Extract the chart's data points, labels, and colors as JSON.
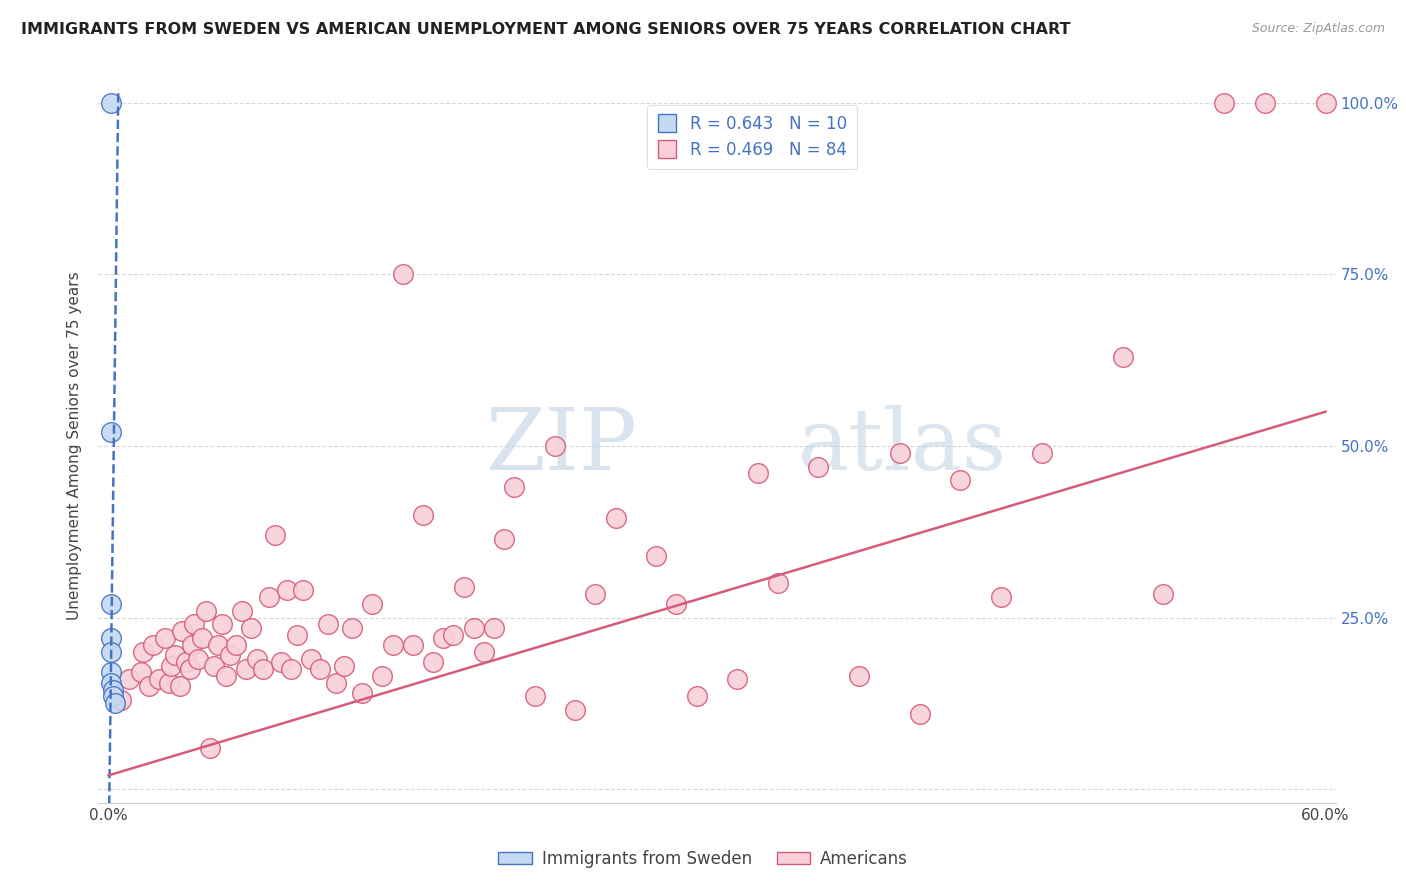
{
  "title": "IMMIGRANTS FROM SWEDEN VS AMERICAN UNEMPLOYMENT AMONG SENIORS OVER 75 YEARS CORRELATION CHART",
  "source": "Source: ZipAtlas.com",
  "ylabel": "Unemployment Among Seniors over 75 years",
  "legend_r_blue": "R = 0.643",
  "legend_n_blue": "N = 10",
  "legend_r_pink": "R = 0.469",
  "legend_n_pink": "N = 84",
  "blue_fill_color": "#c5d9f0",
  "blue_edge_color": "#4472c4",
  "pink_fill_color": "#f8d0da",
  "pink_edge_color": "#d45b7a",
  "blue_line_color": "#4472c4",
  "pink_line_color": "#d45b7a",
  "blue_scatter_x": [
    0.001,
    0.001,
    0.001,
    0.001,
    0.001,
    0.001,
    0.001,
    0.002,
    0.002,
    0.003
  ],
  "blue_scatter_y": [
    1.0,
    0.52,
    0.27,
    0.22,
    0.2,
    0.17,
    0.155,
    0.145,
    0.135,
    0.125
  ],
  "blue_line_x": [
    0.0,
    0.006
  ],
  "blue_line_y": [
    -0.1,
    1.3
  ],
  "pink_scatter_x": [
    0.006,
    0.01,
    0.016,
    0.017,
    0.02,
    0.022,
    0.025,
    0.028,
    0.03,
    0.031,
    0.033,
    0.035,
    0.036,
    0.038,
    0.04,
    0.041,
    0.042,
    0.044,
    0.046,
    0.048,
    0.05,
    0.052,
    0.054,
    0.056,
    0.058,
    0.06,
    0.063,
    0.066,
    0.068,
    0.07,
    0.073,
    0.076,
    0.079,
    0.082,
    0.085,
    0.088,
    0.09,
    0.093,
    0.096,
    0.1,
    0.104,
    0.108,
    0.112,
    0.116,
    0.12,
    0.125,
    0.13,
    0.135,
    0.14,
    0.145,
    0.15,
    0.155,
    0.16,
    0.165,
    0.17,
    0.175,
    0.18,
    0.185,
    0.19,
    0.195,
    0.2,
    0.21,
    0.22,
    0.23,
    0.24,
    0.25,
    0.27,
    0.28,
    0.29,
    0.31,
    0.32,
    0.33,
    0.35,
    0.37,
    0.39,
    0.4,
    0.42,
    0.44,
    0.46,
    0.5,
    0.52,
    0.55,
    0.57,
    0.6
  ],
  "pink_scatter_y": [
    0.13,
    0.16,
    0.17,
    0.2,
    0.15,
    0.21,
    0.16,
    0.22,
    0.155,
    0.18,
    0.195,
    0.15,
    0.23,
    0.185,
    0.175,
    0.21,
    0.24,
    0.19,
    0.22,
    0.26,
    0.06,
    0.18,
    0.21,
    0.24,
    0.165,
    0.195,
    0.21,
    0.26,
    0.175,
    0.235,
    0.19,
    0.175,
    0.28,
    0.37,
    0.185,
    0.29,
    0.175,
    0.225,
    0.29,
    0.19,
    0.175,
    0.24,
    0.155,
    0.18,
    0.235,
    0.14,
    0.27,
    0.165,
    0.21,
    0.75,
    0.21,
    0.4,
    0.185,
    0.22,
    0.225,
    0.295,
    0.235,
    0.2,
    0.235,
    0.365,
    0.44,
    0.135,
    0.5,
    0.115,
    0.285,
    0.395,
    0.34,
    0.27,
    0.135,
    0.16,
    0.46,
    0.3,
    0.47,
    0.165,
    0.49,
    0.11,
    0.45,
    0.28,
    0.49,
    0.63,
    0.285,
    1.0,
    1.0,
    1.0
  ],
  "pink_line_x": [
    0.0,
    0.6
  ],
  "pink_line_y": [
    0.02,
    0.55
  ],
  "xmin": 0.0,
  "xmax": 0.6,
  "ymin": 0.0,
  "ymax": 1.0,
  "xtick_positions": [
    0.0,
    0.1,
    0.2,
    0.3,
    0.4,
    0.5,
    0.6
  ],
  "xtick_labels": [
    "0.0%",
    "",
    "",
    "",
    "",
    "",
    "60.0%"
  ],
  "ytick_positions": [
    0.0,
    0.25,
    0.5,
    0.75,
    1.0
  ],
  "ytick_labels_right": [
    "",
    "25.0%",
    "50.0%",
    "75.0%",
    "100.0%"
  ],
  "watermark_zip": "ZIP",
  "watermark_atlas": "atlas",
  "background_color": "#ffffff",
  "grid_color": "#d8d8d8"
}
